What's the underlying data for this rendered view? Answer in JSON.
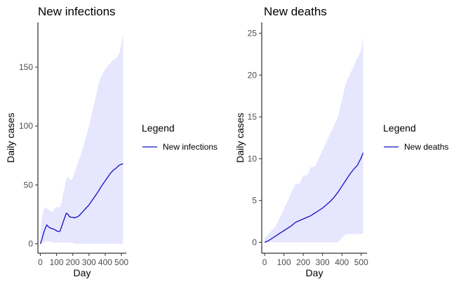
{
  "colors": {
    "line": "#1010c8",
    "band": "#e6e6ff",
    "axis": "#000000",
    "tick_text": "#4d4d4d"
  },
  "chart_data": [
    {
      "type": "line",
      "title": "New infections",
      "xlabel": "Day",
      "ylabel": "Daily cases",
      "xlim": [
        -15,
        530
      ],
      "ylim": [
        -8,
        188
      ],
      "xticks": [
        0,
        100,
        200,
        300,
        400,
        500
      ],
      "xtick_labels": [
        "0",
        "100",
        "200",
        "300",
        "400",
        "500"
      ],
      "yticks": [
        0,
        50,
        100,
        150
      ],
      "ytick_labels": [
        "0",
        "50",
        "100",
        "150"
      ],
      "grid": false,
      "legend": {
        "title": "Legend",
        "placement": "right",
        "entries": [
          "New infections"
        ]
      },
      "series": [
        {
          "name": "New infections",
          "x": [
            0,
            10,
            20,
            30,
            40,
            50,
            60,
            70,
            80,
            90,
            100,
            110,
            120,
            130,
            140,
            150,
            160,
            170,
            180,
            190,
            200,
            210,
            220,
            230,
            240,
            250,
            260,
            270,
            280,
            290,
            300,
            310,
            320,
            330,
            340,
            350,
            360,
            370,
            380,
            390,
            400,
            410,
            420,
            430,
            440,
            450,
            460,
            470,
            480,
            490,
            500,
            510
          ],
          "mean": [
            0,
            4,
            9,
            13,
            16,
            14.5,
            13.5,
            13,
            12.5,
            12,
            11,
            10.5,
            10.5,
            14,
            18,
            22,
            26,
            25,
            23,
            22.5,
            22.5,
            22,
            22.5,
            23,
            24,
            25.5,
            27,
            28.5,
            30,
            31.5,
            33,
            35,
            37,
            39,
            41,
            43,
            45,
            47.5,
            49.5,
            51.5,
            53.5,
            55.5,
            57.5,
            59.5,
            61,
            62.5,
            63.5,
            64.5,
            66,
            67,
            67.5,
            68
          ],
          "upper": [
            10,
            22,
            29,
            31,
            30,
            29,
            28,
            27,
            28,
            30,
            31,
            31,
            31,
            35,
            42,
            48,
            55,
            57,
            55,
            54,
            56,
            60,
            64,
            68,
            72,
            76,
            80,
            85,
            90,
            95,
            100,
            106,
            112,
            118,
            124,
            130,
            136,
            140,
            143,
            146,
            148,
            150,
            152,
            153,
            155,
            156,
            157,
            158,
            160,
            163,
            170,
            180
          ],
          "lower": [
            0,
            0,
            1,
            2,
            2,
            2,
            2,
            1,
            1,
            1,
            1,
            1,
            1,
            1,
            1,
            1,
            1,
            1,
            1,
            1,
            1,
            0,
            0,
            0,
            0,
            0,
            0,
            0,
            0,
            0,
            0,
            0,
            0,
            0,
            0,
            0,
            0,
            0,
            0,
            0,
            0,
            0,
            0,
            0,
            0,
            0,
            0,
            0,
            0,
            0,
            0,
            0
          ]
        }
      ]
    },
    {
      "type": "line",
      "title": "New deaths",
      "xlabel": "Day",
      "ylabel": "Daily cases",
      "xlim": [
        -15,
        530
      ],
      "ylim": [
        -1.3,
        26.3
      ],
      "xticks": [
        0,
        100,
        200,
        300,
        400,
        500
      ],
      "xtick_labels": [
        "0",
        "100",
        "200",
        "300",
        "400",
        "500"
      ],
      "yticks": [
        0,
        5,
        10,
        15,
        20,
        25
      ],
      "ytick_labels": [
        "0",
        "5",
        "10",
        "15",
        "20",
        "25"
      ],
      "grid": false,
      "legend": {
        "title": "Legend",
        "placement": "right",
        "entries": [
          "New deaths"
        ]
      },
      "series": [
        {
          "name": "New deaths",
          "x": [
            0,
            20,
            40,
            60,
            80,
            100,
            120,
            140,
            160,
            180,
            200,
            220,
            240,
            260,
            280,
            300,
            320,
            340,
            360,
            380,
            400,
            420,
            440,
            460,
            480,
            500,
            510
          ],
          "mean": [
            0,
            0.2,
            0.5,
            0.8,
            1.1,
            1.4,
            1.7,
            2.0,
            2.4,
            2.6,
            2.8,
            3.0,
            3.2,
            3.5,
            3.8,
            4.1,
            4.5,
            4.9,
            5.4,
            6.0,
            6.7,
            7.4,
            8.1,
            8.7,
            9.2,
            10.1,
            10.7
          ],
          "upper": [
            0.5,
            1,
            1.5,
            2,
            3,
            4,
            5,
            6,
            7,
            7,
            8,
            8,
            9,
            9,
            10,
            11,
            12,
            13,
            14,
            15,
            17,
            19,
            20,
            21,
            22,
            23,
            24.5
          ],
          "lower": [
            0,
            0,
            0,
            0,
            0,
            0,
            0,
            0,
            0,
            0,
            0,
            0,
            0,
            0,
            0,
            0,
            0,
            0,
            0,
            0,
            0.5,
            1,
            1,
            1,
            1,
            1,
            1
          ]
        }
      ]
    }
  ]
}
